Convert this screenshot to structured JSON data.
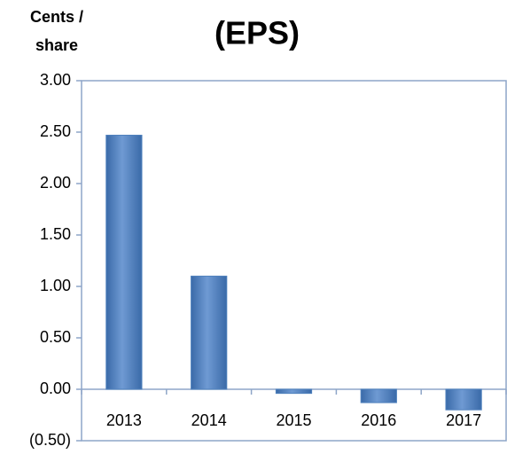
{
  "chart_data": {
    "type": "bar",
    "title": "(EPS)",
    "y_label": [
      "Cents /",
      "share"
    ],
    "categories": [
      "2013",
      "2014",
      "2015",
      "2016",
      "2017"
    ],
    "values": [
      2.47,
      1.1,
      -0.04,
      -0.13,
      -0.2
    ],
    "color": "#4f81bd",
    "ylim": [
      -0.5,
      3.0
    ],
    "yticks": [
      {
        "value": -0.5,
        "label": "(0.50)"
      },
      {
        "value": 0,
        "label": "0.00"
      },
      {
        "value": 0.5,
        "label": "0.50"
      },
      {
        "value": 1.0,
        "label": "1.00"
      },
      {
        "value": 1.5,
        "label": "1.50"
      },
      {
        "value": 2.0,
        "label": "2.00"
      },
      {
        "value": 2.5,
        "label": "2.50"
      },
      {
        "value": 3.0,
        "label": "3.00"
      }
    ],
    "grid": false
  }
}
